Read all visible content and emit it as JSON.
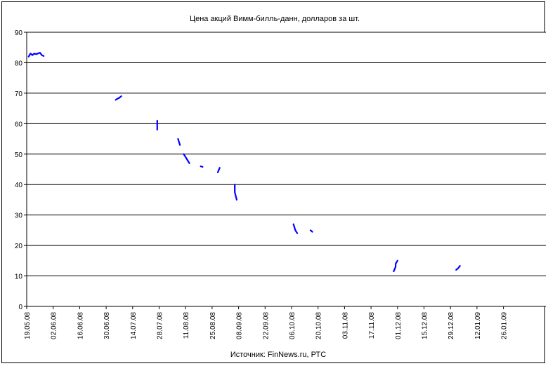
{
  "chart_data": {
    "type": "line",
    "title": "Цена акций Вимм-билль-данн, долларов за шт.",
    "source": "Источник: FinNews.ru, РТС",
    "ylim": [
      0,
      90
    ],
    "yticks": [
      "0",
      "10",
      "20",
      "30",
      "40",
      "50",
      "60",
      "70",
      "80",
      "90"
    ],
    "xticks": [
      "19.05.08",
      "02.06.08",
      "16.06.08",
      "30.06.08",
      "14.07.08",
      "28.07.08",
      "11.08.08",
      "25.08.08",
      "08.09.08",
      "22.09.08",
      "06.10.08",
      "20.10.08",
      "03.11.08",
      "17.11.08",
      "01.12.08",
      "15.12.08",
      "29.12.08",
      "12.01.09",
      "26.01.09"
    ],
    "grid": true,
    "series_color": "#0000ff",
    "segments": [
      {
        "points": [
          [
            "2008-05-20",
            82.0
          ],
          [
            "2008-05-21",
            83.0
          ],
          [
            "2008-05-22",
            82.5
          ],
          [
            "2008-05-23",
            83.0
          ],
          [
            "2008-05-24",
            82.8
          ],
          [
            "2008-05-26",
            83.3
          ],
          [
            "2008-05-27",
            82.5
          ],
          [
            "2008-05-28",
            82.2
          ]
        ]
      },
      {
        "points": [
          [
            "2008-07-05",
            67.8
          ],
          [
            "2008-07-06",
            68.2
          ],
          [
            "2008-07-07",
            68.5
          ],
          [
            "2008-07-08",
            69.0
          ]
        ]
      },
      {
        "points": [
          [
            "2008-07-27",
            61.0
          ],
          [
            "2008-07-27",
            58.0
          ]
        ]
      },
      {
        "points": [
          [
            "2008-08-07",
            55.0
          ],
          [
            "2008-08-08",
            53.0
          ]
        ]
      },
      {
        "points": [
          [
            "2008-08-10",
            50.0
          ],
          [
            "2008-08-11",
            49.0
          ],
          [
            "2008-08-12",
            48.0
          ],
          [
            "2008-08-13",
            47.0
          ]
        ]
      },
      {
        "points": [
          [
            "2008-08-19",
            46.0
          ],
          [
            "2008-08-20",
            45.8
          ]
        ]
      },
      {
        "points": [
          [
            "2008-08-28",
            44.0
          ],
          [
            "2008-08-29",
            45.5
          ]
        ]
      },
      {
        "points": [
          [
            "2008-09-06",
            40.0
          ],
          [
            "2008-09-06",
            37.5
          ],
          [
            "2008-09-07",
            35.0
          ]
        ]
      },
      {
        "points": [
          [
            "2008-10-07",
            27.0
          ],
          [
            "2008-10-08",
            25.0
          ],
          [
            "2008-10-09",
            24.0
          ]
        ]
      },
      {
        "points": [
          [
            "2008-10-16",
            25.0
          ],
          [
            "2008-10-17",
            24.5
          ]
        ]
      },
      {
        "points": [
          [
            "2008-11-29",
            11.5
          ],
          [
            "2008-11-30",
            13.0
          ],
          [
            "2008-11-30",
            14.0
          ],
          [
            "2008-12-01",
            15.0
          ]
        ]
      },
      {
        "points": [
          [
            "2009-01-01",
            12.0
          ],
          [
            "2009-01-02",
            12.5
          ],
          [
            "2009-01-03",
            13.3
          ]
        ]
      }
    ]
  }
}
